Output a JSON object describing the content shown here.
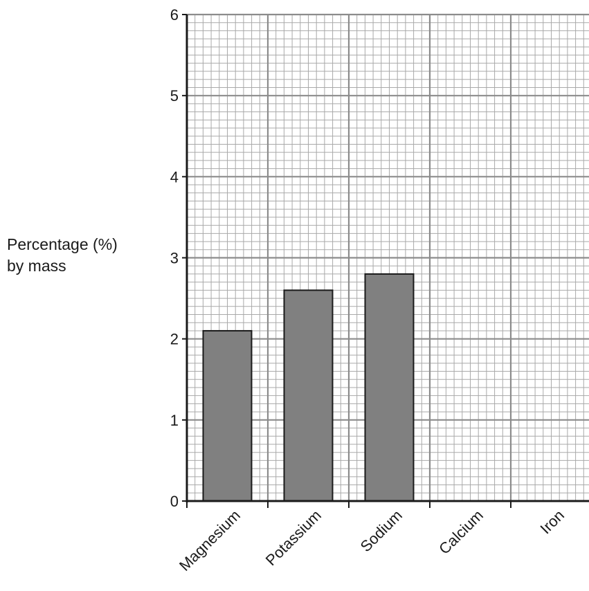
{
  "chart_data": {
    "type": "bar",
    "categories": [
      "Magnesium",
      "Potassium",
      "Sodium",
      "Calcium",
      "Iron"
    ],
    "values": [
      2.1,
      2.6,
      2.8,
      null,
      null
    ],
    "ylabel_lines": [
      "Percentage (%)",
      "by mass"
    ],
    "xlabel": "",
    "ylim": [
      0,
      6
    ],
    "yticks": [
      "0",
      "1",
      "2",
      "3",
      "4",
      "5",
      "6"
    ],
    "grid": "on",
    "bar_color": "#808080",
    "grid_color": "#a9a9a9"
  }
}
